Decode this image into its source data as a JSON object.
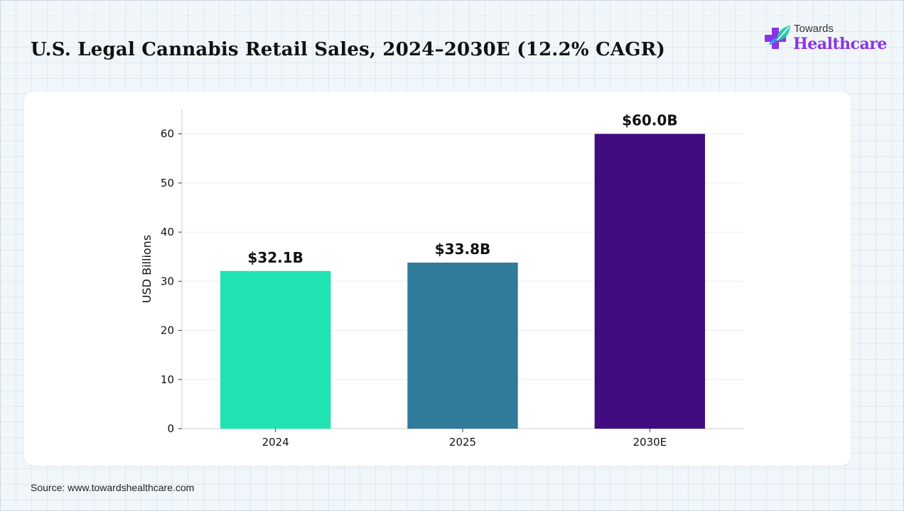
{
  "header": {
    "title": "U.S. Legal Cannabis Retail Sales, 2024–2030E (12.2% CAGR)"
  },
  "logo": {
    "top_text": "Towards",
    "bottom_text": "Healthcare",
    "icon": "medical-cross-leaf-icon",
    "colors": [
      "#8b34e6",
      "#2a9de0",
      "#1ec7a9"
    ]
  },
  "chart_data": {
    "type": "bar",
    "categories": [
      "2024",
      "2025",
      "2030E"
    ],
    "values": [
      32.1,
      33.8,
      60.0
    ],
    "data_labels": [
      "$32.1B",
      "$33.8B",
      "$60.0B"
    ],
    "colors": [
      "#21e3b1",
      "#307a9a",
      "#400c7f"
    ],
    "title": "",
    "xlabel": "",
    "ylabel": "USD Billions",
    "ylim": [
      0,
      65
    ],
    "yticks": [
      0,
      10,
      20,
      30,
      40,
      50,
      60
    ],
    "grid": true
  },
  "footer": {
    "source": "Source: www.towardshealthcare.com"
  }
}
